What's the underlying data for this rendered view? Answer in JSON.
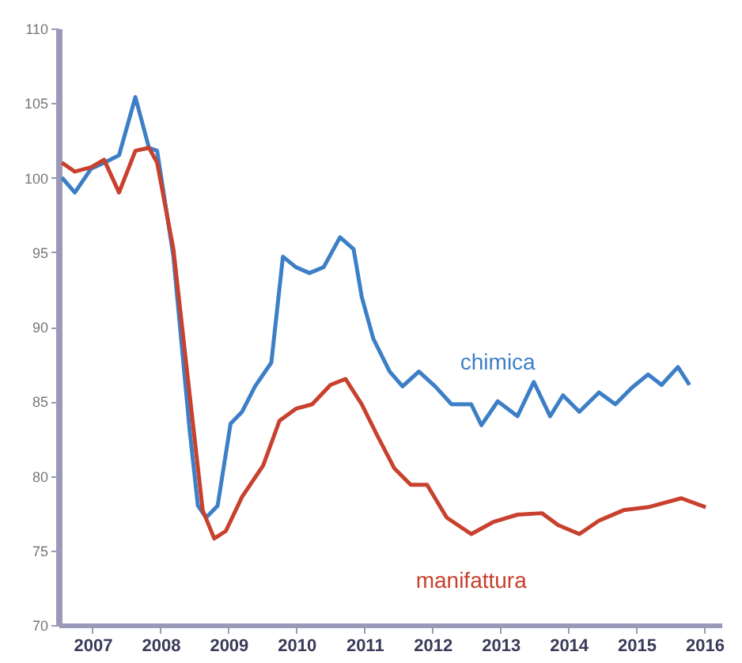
{
  "chart_data": {
    "type": "line",
    "xlim": [
      2007,
      2016.75
    ],
    "ylim": [
      70,
      110
    ],
    "yticks": [
      70,
      75,
      80,
      85,
      90,
      95,
      100,
      105,
      110
    ],
    "xticks": [
      {
        "value": 2007.5,
        "label": "2007"
      },
      {
        "value": 2008.5,
        "label": "2008"
      },
      {
        "value": 2009.5,
        "label": "2009"
      },
      {
        "value": 2010.5,
        "label": "2010"
      },
      {
        "value": 2011.5,
        "label": "2011"
      },
      {
        "value": 2012.5,
        "label": "2012"
      },
      {
        "value": 2013.5,
        "label": "2013"
      },
      {
        "value": 2014.5,
        "label": "2014"
      },
      {
        "value": 2015.5,
        "label": "2015"
      },
      {
        "value": 2016.5,
        "label": "2016"
      }
    ],
    "grid": false,
    "legend": false,
    "series": [
      {
        "name": "chimica",
        "color": "#3d7fc6",
        "x": [
          2007.05,
          2007.24,
          2007.48,
          2007.67,
          2007.89,
          2008.13,
          2008.33,
          2008.45,
          2008.69,
          2008.93,
          2009.05,
          2009.17,
          2009.34,
          2009.53,
          2009.7,
          2009.89,
          2010.13,
          2010.3,
          2010.49,
          2010.69,
          2010.9,
          2011.14,
          2011.34,
          2011.46,
          2011.63,
          2011.87,
          2012.06,
          2012.3,
          2012.54,
          2012.78,
          2013.07,
          2013.22,
          2013.46,
          2013.75,
          2013.99,
          2014.23,
          2014.42,
          2014.66,
          2014.95,
          2015.19,
          2015.43,
          2015.67,
          2015.87,
          2016.11,
          2016.28
        ],
        "values": [
          100,
          99,
          100.6,
          101,
          101.5,
          105.4,
          102,
          101.8,
          94.7,
          83,
          78,
          77.2,
          78,
          83.5,
          84.3,
          86,
          87.6,
          94.7,
          94,
          93.6,
          94,
          96,
          95.2,
          92,
          89.2,
          87,
          86,
          87,
          86,
          84.8,
          84.8,
          83.4,
          85,
          84,
          86.3,
          84,
          85.4,
          84.3,
          85.6,
          84.8,
          85.9,
          86.8,
          86.1,
          87.3,
          86.1
        ]
      },
      {
        "name": "manifattura",
        "color": "#c8402e",
        "x": [
          2007.05,
          2007.24,
          2007.48,
          2007.67,
          2007.89,
          2008.13,
          2008.33,
          2008.45,
          2008.69,
          2008.93,
          2009.12,
          2009.29,
          2009.46,
          2009.7,
          2010.01,
          2010.25,
          2010.49,
          2010.73,
          2011.0,
          2011.22,
          2011.46,
          2011.7,
          2011.94,
          2012.18,
          2012.42,
          2012.71,
          2013.07,
          2013.39,
          2013.75,
          2014.11,
          2014.35,
          2014.66,
          2014.95,
          2015.31,
          2015.67,
          2016.16,
          2016.52
        ],
        "values": [
          101,
          100.4,
          100.7,
          101.2,
          99,
          101.8,
          102,
          101,
          95.2,
          85.4,
          77.7,
          75.8,
          76.3,
          78.6,
          80.7,
          83.7,
          84.5,
          84.8,
          86.1,
          86.5,
          84.8,
          82.6,
          80.5,
          79.4,
          79.4,
          77.2,
          76.1,
          76.9,
          77.4,
          77.5,
          76.7,
          76.1,
          77,
          77.7,
          77.9,
          78.5,
          77.9
        ]
      }
    ]
  }
}
